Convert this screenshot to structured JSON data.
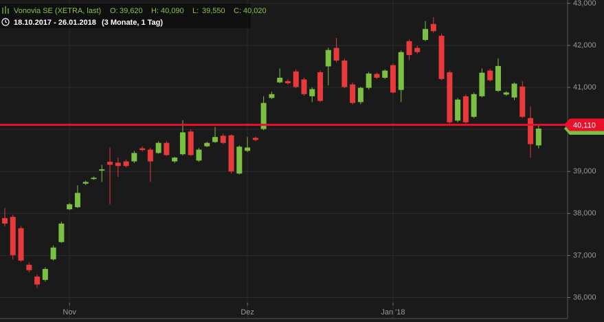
{
  "header": {
    "name": "Vonovia SE (XETRA, last)",
    "quote": [
      {
        "key": "O:",
        "value": "39,620"
      },
      {
        "key": "H:",
        "value": "40,090"
      },
      {
        "key": "L:",
        "value": "39,550"
      },
      {
        "key": "C:",
        "value": "40,020"
      }
    ],
    "range": "18.10.2017 - 26.01.2018",
    "period": "(3 Monate, 1 Tag)"
  },
  "chart_data": {
    "type": "candlestick",
    "categories": [
      null,
      null,
      null,
      null,
      null,
      null,
      null,
      null,
      "Nov",
      null,
      null,
      null,
      null,
      null,
      null,
      null,
      null,
      null,
      null,
      null,
      null,
      null,
      null,
      null,
      null,
      null,
      null,
      null,
      null,
      null,
      "Dez",
      null,
      null,
      null,
      null,
      null,
      null,
      null,
      null,
      null,
      null,
      null,
      null,
      null,
      null,
      null,
      null,
      null,
      "Jan '18",
      null,
      null,
      null,
      null,
      null,
      null,
      null,
      null,
      null,
      null,
      null,
      null,
      null,
      null,
      null,
      null,
      null,
      null
    ],
    "open": [
      37890,
      37920,
      37650,
      36780,
      36500,
      36420,
      36910,
      37320,
      38100,
      38150,
      38710,
      38820,
      39020,
      39230,
      39210,
      39240,
      39240,
      39550,
      39520,
      39440,
      39680,
      39240,
      39410,
      39950,
      39260,
      39600,
      39700,
      39850,
      39860,
      38950,
      39490,
      39800,
      40010,
      40750,
      41120,
      41150,
      41380,
      41190,
      40790,
      41360,
      41500,
      41940,
      41640,
      41070,
      40650,
      40990,
      41320,
      41230,
      41530,
      40940,
      42100,
      41940,
      42130,
      42510,
      42230,
      41360,
      40210,
      40790,
      40300,
      40790,
      41400,
      40920,
      40830,
      40760,
      41020,
      40270,
      39620
    ],
    "high": [
      38130,
      37970,
      37700,
      36830,
      36550,
      36720,
      37240,
      37810,
      38250,
      38670,
      38780,
      38880,
      39160,
      39570,
      39330,
      39280,
      39490,
      39590,
      39560,
      39720,
      39720,
      39350,
      40220,
      40000,
      39560,
      39710,
      40060,
      39900,
      39880,
      39620,
      39820,
      39830,
      40790,
      40900,
      41450,
      41190,
      41430,
      41230,
      41000,
      41400,
      41950,
      42180,
      41690,
      41120,
      41020,
      41370,
      41350,
      41430,
      41570,
      41880,
      42140,
      41990,
      42580,
      42670,
      42280,
      41400,
      40750,
      40830,
      40880,
      41450,
      41440,
      41690,
      40910,
      41120,
      41150,
      40550,
      40090
    ],
    "low": [
      37700,
      36910,
      36850,
      36600,
      36230,
      36380,
      36880,
      37300,
      38080,
      38130,
      38680,
      38800,
      38750,
      38220,
      38870,
      39100,
      39200,
      39480,
      38750,
      39420,
      39370,
      39200,
      39380,
      39370,
      39230,
      39580,
      39680,
      39650,
      38950,
      38930,
      39460,
      39720,
      39980,
      40720,
      41100,
      41070,
      40980,
      40800,
      40650,
      40650,
      41050,
      41600,
      40980,
      40590,
      40600,
      40950,
      41200,
      41200,
      40850,
      40650,
      41650,
      41800,
      42100,
      42300,
      41170,
      40140,
      40170,
      40140,
      40270,
      40760,
      41140,
      40890,
      40800,
      40700,
      40270,
      39330,
      39550
    ],
    "close": [
      37760,
      37010,
      36880,
      36650,
      36310,
      36680,
      37190,
      37760,
      38220,
      38490,
      38750,
      38850,
      39050,
      39160,
      39130,
      39130,
      39440,
      39510,
      39240,
      39680,
      39390,
      39330,
      39930,
      39390,
      39520,
      39680,
      39820,
      39680,
      39000,
      39590,
      39570,
      39750,
      40630,
      40840,
      41230,
      41100,
      41010,
      40840,
      40960,
      40680,
      41890,
      41640,
      41010,
      40630,
      40990,
      41330,
      41230,
      41400,
      40880,
      41840,
      41770,
      41840,
      42390,
      42340,
      41200,
      40170,
      40710,
      40170,
      40840,
      41350,
      41170,
      41510,
      40880,
      41090,
      40300,
      39650,
      40020
    ],
    "up_color": "#7bc043",
    "down_color": "#e83a3a",
    "ylim": [
      35500,
      43080
    ],
    "yticks": [
      {
        "value": 36000,
        "label": "36,000"
      },
      {
        "value": 37000,
        "label": "37,000"
      },
      {
        "value": 38000,
        "label": "38,000"
      },
      {
        "value": 39000,
        "label": "39,000"
      },
      {
        "value": 40000,
        "label": "40,000"
      },
      {
        "value": 41000,
        "label": "41,000"
      },
      {
        "value": 42000,
        "label": "42,000"
      },
      {
        "value": 43000,
        "label": "43,000"
      }
    ],
    "grid": true,
    "price_line": {
      "value": 40110,
      "label": "40,110",
      "color": "#e8102a"
    }
  }
}
